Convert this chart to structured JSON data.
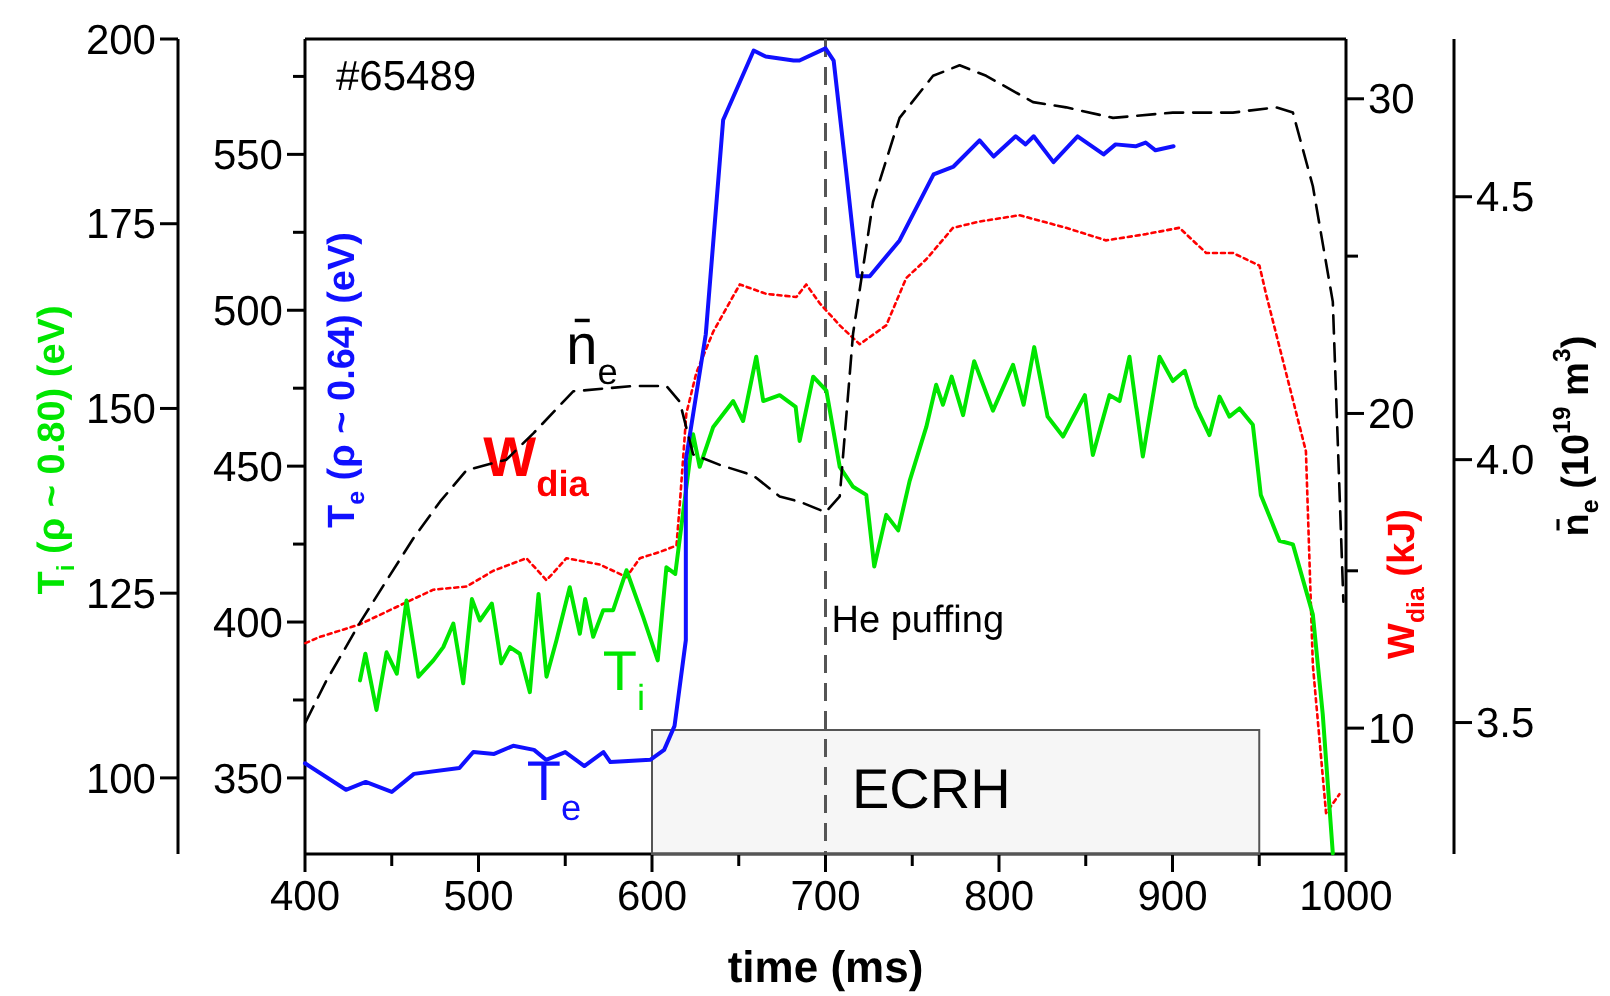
{
  "chart_data": [
    {
      "type": "line",
      "xlabel": "time (ms)",
      "ylabel": "T$_{i}$ (ρ ~ 0.80) (eV)",
      "y2label": "T$_{e}$ (ρ ~ 0.64) (eV)",
      "y3label": "W$_{dia}$ (kJ)",
      "xlim": [
        400,
        1000
      ],
      "xticks": [
        400,
        {
          "value": 450,
          "label": null
        },
        500,
        {
          "value": 550,
          "label": null
        },
        600,
        {
          "value": 650,
          "label": null
        },
        700,
        {
          "value": 750,
          "label": null
        },
        800,
        {
          "value": 850,
          "label": null
        },
        900,
        {
          "value": 950,
          "label": null
        },
        1000
      ],
      "ylim": [
        89.7,
        200
      ],
      "yticks": [
        100,
        125,
        150,
        175,
        200
      ],
      "y2lim": [
        325.6,
        587
      ],
      "y2ticks": [
        350,
        {
          "value": 375,
          "label": null
        },
        400,
        {
          "value": 425,
          "label": null
        },
        450,
        {
          "value": 475,
          "label": null
        },
        500,
        {
          "value": 525,
          "label": null
        },
        550,
        {
          "value": 575,
          "label": null
        }
      ],
      "y3lim": [
        6,
        31.9
      ],
      "y3ticks": [
        10,
        {
          "value": 15,
          "label": null
        },
        20,
        {
          "value": 25,
          "label": null
        },
        30
      ],
      "annotations": [
        "#65489"
      ],
      "ref_lines": [
        {
          "axis": "x",
          "value": 700,
          "label": "He puffing",
          "color": "#555555",
          "line_style": "dashed"
        }
      ],
      "bands": [
        {
          "axis": "x",
          "from": 600,
          "to": 950,
          "label": "ECRH",
          "color": "#555555"
        }
      ],
      "series": [
        {
          "name": "W$_{dia}$",
          "color": "#ff0000",
          "axis": "y3",
          "line_style": "dotted",
          "x": [
            400.2,
            408.6,
            420.2,
            431.7,
            443.2,
            458.5,
            474,
            493.1,
            508.5,
            527.6,
            539.2,
            550.7,
            569.9,
            585.3,
            593,
            604.5,
            614.1,
            616,
            619.8,
            625.6,
            635.3,
            650.6,
            665.9,
            683.2,
            688.9,
            696.7,
            708.2,
            719.7,
            735,
            746.5,
            758.1,
            773.5,
            788.8,
            811.8,
            838.7,
            861.7,
            884.8,
            904,
            919.4,
            934.8,
            950.1,
            953.9,
            965.4,
            976.9,
            980.9,
            988.5,
            996.2
          ],
          "values": [
            12.7,
            12.9,
            13.1,
            13.3,
            13.6,
            14.0,
            14.4,
            14.5,
            15.0,
            15.4,
            14.7,
            15.4,
            15.2,
            14.8,
            15.4,
            15.6,
            15.8,
            17.1,
            20.0,
            21.3,
            22.6,
            24.1,
            23.8,
            23.7,
            24.1,
            23.5,
            22.8,
            22.2,
            22.8,
            24.3,
            24.9,
            25.9,
            26.1,
            26.3,
            25.9,
            25.5,
            25.7,
            25.9,
            25.1,
            25.1,
            24.7,
            23.8,
            21.3,
            18.8,
            12.0,
            7.3,
            7.9
          ]
        },
        {
          "name": "T$_{i}$",
          "color": "#00e600",
          "line_style": "solid",
          "x": [
            431.7,
            434.8,
            441.2,
            447,
            452.9,
            458.5,
            465.4,
            474,
            479.7,
            485.5,
            491.2,
            496.2,
            500.8,
            507.7,
            513.1,
            518.1,
            523.8,
            529.6,
            534.6,
            539.2,
            544.9,
            552.6,
            558.4,
            561.5,
            566.1,
            571.9,
            577.6,
            585.3,
            594.9,
            603.3,
            608.3,
            613.4,
            623.7,
            627.5,
            635.3,
            646.8,
            652.5,
            660.1,
            664.1,
            673.6,
            682.8,
            685.1,
            692.9,
            700.5,
            708.2,
            715.9,
            723.5,
            728.1,
            735,
            741.9,
            748.5,
            758.1,
            763.8,
            767.7,
            772.7,
            779.3,
            785.7,
            796.5,
            808.1,
            814.2,
            820.3,
            828,
            836.9,
            849.5,
            854.1,
            863.7,
            869.5,
            875.2,
            882.9,
            892.5,
            900.2,
            907.1,
            913.6,
            921.3,
            927.1,
            932.8,
            938.6,
            946.3,
            950.9,
            961.6,
            969.4,
            980.9,
            986.6,
            992.4
          ],
          "values": [
            113.2,
            116.8,
            109.2,
            117,
            114.1,
            124,
            113.7,
            115.9,
            117.7,
            120.9,
            112.8,
            124.2,
            121.3,
            123.6,
            115.5,
            117.7,
            116.8,
            111.6,
            124.9,
            113.7,
            118.6,
            125.8,
            119.5,
            124.2,
            119.1,
            122.7,
            122.7,
            128.1,
            121.8,
            115.9,
            128.5,
            127.6,
            146.5,
            142.1,
            147.5,
            151,
            148.3,
            157,
            151,
            151.8,
            150.2,
            145.6,
            154.3,
            152.4,
            142.1,
            139.4,
            138.3,
            128.6,
            135.6,
            133.5,
            140.2,
            147.5,
            153.2,
            150.5,
            154.3,
            149.1,
            156.4,
            149.7,
            155.9,
            150.5,
            158.3,
            148.9,
            146.2,
            151.8,
            143.7,
            151.8,
            151,
            157,
            143.5,
            157,
            153.7,
            155.1,
            150.2,
            146.4,
            151.6,
            148.9,
            150,
            147.8,
            138.3,
            132.1,
            131.6,
            122.1,
            108.6,
            89.8
          ]
        },
        {
          "name": "T$_{e}$",
          "color": "#1010ff",
          "axis": "y2",
          "line_style": "solid",
          "x": [
            400,
            423.6,
            435,
            450,
            462.8,
            489,
            497,
            509,
            520,
            532,
            539,
            550,
            561,
            572,
            576,
            599,
            607,
            613,
            619.5,
            619.5,
            631,
            641,
            658.6,
            665.5,
            681.6,
            685,
            700,
            704.7,
            711.6,
            718.5,
            725.5,
            742.7,
            762.3,
            773.8,
            788.8,
            796.9,
            809.6,
            815.3,
            820,
            831.4,
            845.3,
            860.3,
            867.2,
            878.7,
            884.5,
            890.2,
            900.6
          ],
          "values": [
            354.7,
            346.2,
            348.7,
            345.5,
            351.3,
            353.2,
            358.3,
            357.7,
            360.3,
            359,
            355.8,
            358.3,
            353.8,
            358.3,
            355.1,
            355.8,
            359,
            366.7,
            394.2,
            451.9,
            492.3,
            561,
            583.3,
            581.4,
            580.1,
            580.1,
            584,
            580.1,
            546.1,
            510.9,
            510.9,
            522.4,
            543.6,
            546.1,
            554.5,
            549.3,
            555.8,
            553.2,
            555.8,
            547.5,
            555.8,
            550,
            553.2,
            552.6,
            553.8,
            551.3,
            552.6
          ]
        }
      ]
    },
    {
      "type": "line",
      "ylabel": "n̄$_{e}$ (10$^{19}$ m$^{3}$)",
      "tick_labels": "y",
      "xlim": [
        400,
        1000
      ],
      "ylim": [
        3.25,
        4.8
      ],
      "yticks": [
        {
          "value": 3.5,
          "label": "3.5"
        },
        {
          "value": 4,
          "label": "4.0"
        },
        {
          "value": 4.5,
          "label": "4.5"
        }
      ],
      "series": [
        {
          "name": "n̄$_{e}$",
          "color": "#000000",
          "line_style": "dashed",
          "x": [
            400.2,
            412.4,
            431.7,
            447,
            462.4,
            477.8,
            493.1,
            516.1,
            531.6,
            554.6,
            589.2,
            608.3,
            616,
            623.7,
            639.1,
            658.3,
            673.6,
            685.1,
            700.1,
            708.2,
            715.9,
            727.4,
            742.7,
            762,
            777.3,
            792.6,
            819.6,
            838.7,
            865.7,
            900.2,
            934.8,
            959.7,
            969.4,
            980.9,
            992.4,
            998.5
          ],
          "values": [
            3.5,
            3.58,
            3.69,
            3.77,
            3.85,
            3.92,
            3.98,
            4.0,
            4.05,
            4.13,
            4.14,
            4.14,
            4.11,
            4.01,
            3.99,
            3.97,
            3.93,
            3.92,
            3.9,
            3.93,
            4.24,
            4.49,
            4.65,
            4.73,
            4.75,
            4.73,
            4.68,
            4.67,
            4.65,
            4.66,
            4.66,
            4.67,
            4.66,
            4.52,
            4.3,
            3.73
          ]
        }
      ]
    }
  ]
}
